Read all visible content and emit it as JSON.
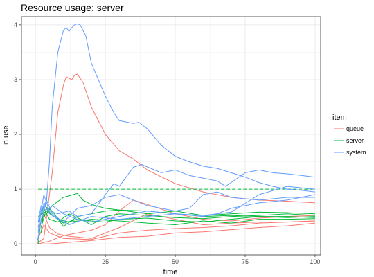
{
  "chart_data": {
    "type": "line",
    "title": "Resource usage: server",
    "xlabel": "time",
    "ylabel": "in use",
    "xlim": [
      -5,
      102
    ],
    "ylim": [
      -0.2,
      4.15
    ],
    "x_ticks": [
      0,
      25,
      50,
      75,
      100
    ],
    "y_ticks": [
      0,
      1,
      2,
      3,
      4
    ],
    "grid": true,
    "legend": {
      "title": "item",
      "position": "right",
      "entries": [
        {
          "name": "queue",
          "color": "#F8766D"
        },
        {
          "name": "server",
          "color": "#00BA38"
        },
        {
          "name": "system",
          "color": "#619CFF"
        }
      ]
    },
    "series": [
      {
        "name": "queue",
        "color": "#F8766D",
        "points": [
          [
            0.5,
            0
          ],
          [
            3,
            0.1
          ],
          [
            6,
            1.3
          ],
          [
            8,
            2.4
          ],
          [
            10,
            2.9
          ],
          [
            11,
            3.05
          ],
          [
            13,
            3
          ],
          [
            14,
            3.08
          ],
          [
            15,
            3.1
          ],
          [
            17,
            2.95
          ],
          [
            20,
            2.5
          ],
          [
            25,
            2.0
          ],
          [
            30,
            1.7
          ],
          [
            35,
            1.55
          ],
          [
            40,
            1.35
          ],
          [
            50,
            1.1
          ],
          [
            60,
            0.95
          ],
          [
            70,
            0.85
          ],
          [
            80,
            0.8
          ],
          [
            90,
            0.78
          ],
          [
            100,
            0.75
          ]
        ]
      },
      {
        "name": "queue",
        "color": "#F8766D",
        "points": [
          [
            1,
            0
          ],
          [
            5,
            0.05
          ],
          [
            10,
            0.15
          ],
          [
            20,
            0.25
          ],
          [
            25,
            0.35
          ],
          [
            30,
            0.6
          ],
          [
            35,
            0.8
          ],
          [
            40,
            0.72
          ],
          [
            50,
            0.55
          ],
          [
            60,
            0.45
          ],
          [
            70,
            0.42
          ],
          [
            80,
            0.47
          ],
          [
            90,
            0.5
          ],
          [
            100,
            0.52
          ]
        ]
      },
      {
        "name": "queue",
        "color": "#F8766D",
        "points": [
          [
            1,
            0.1
          ],
          [
            3,
            0.35
          ],
          [
            5,
            0.2
          ],
          [
            10,
            0.1
          ],
          [
            20,
            0.08
          ],
          [
            30,
            0.2
          ],
          [
            40,
            0.25
          ],
          [
            50,
            0.28
          ],
          [
            60,
            0.3
          ],
          [
            70,
            0.33
          ],
          [
            80,
            0.38
          ],
          [
            90,
            0.4
          ],
          [
            100,
            0.42
          ]
        ]
      },
      {
        "name": "queue",
        "color": "#F8766D",
        "points": [
          [
            2,
            0
          ],
          [
            5,
            0
          ],
          [
            10,
            0.02
          ],
          [
            20,
            0.06
          ],
          [
            30,
            0.12
          ],
          [
            40,
            0.14
          ],
          [
            50,
            0.2
          ],
          [
            60,
            0.22
          ],
          [
            70,
            0.26
          ],
          [
            80,
            0.3
          ],
          [
            90,
            0.33
          ],
          [
            100,
            0.38
          ]
        ]
      },
      {
        "name": "queue",
        "color": "#F8766D",
        "points": [
          [
            1,
            0.25
          ],
          [
            3,
            0.55
          ],
          [
            5,
            0.3
          ],
          [
            8,
            0.18
          ],
          [
            12,
            0.14
          ],
          [
            20,
            0.1
          ],
          [
            30,
            0.3
          ],
          [
            40,
            0.55
          ],
          [
            50,
            0.45
          ],
          [
            60,
            0.35
          ],
          [
            70,
            0.38
          ],
          [
            80,
            0.4
          ],
          [
            90,
            0.4
          ],
          [
            100,
            0.42
          ]
        ]
      },
      {
        "name": "server",
        "color": "#00BA38",
        "dashed": true,
        "points": [
          [
            1,
            1
          ],
          [
            100,
            1
          ]
        ]
      },
      {
        "name": "server",
        "color": "#00BA38",
        "points": [
          [
            1,
            0
          ],
          [
            2,
            0.45
          ],
          [
            4,
            0.55
          ],
          [
            6,
            0.7
          ],
          [
            10,
            0.85
          ],
          [
            15,
            0.92
          ],
          [
            17,
            0.8
          ],
          [
            20,
            0.72
          ],
          [
            25,
            0.65
          ],
          [
            30,
            0.62
          ],
          [
            40,
            0.6
          ],
          [
            50,
            0.55
          ],
          [
            60,
            0.5
          ],
          [
            70,
            0.52
          ],
          [
            80,
            0.5
          ],
          [
            90,
            0.48
          ],
          [
            100,
            0.5
          ]
        ]
      },
      {
        "name": "server",
        "color": "#00BA38",
        "points": [
          [
            2,
            0.2
          ],
          [
            3,
            0.65
          ],
          [
            5,
            0.45
          ],
          [
            8,
            0.4
          ],
          [
            12,
            0.55
          ],
          [
            15,
            0.48
          ],
          [
            20,
            0.35
          ],
          [
            25,
            0.5
          ],
          [
            30,
            0.55
          ],
          [
            40,
            0.52
          ],
          [
            50,
            0.48
          ],
          [
            60,
            0.46
          ],
          [
            70,
            0.5
          ],
          [
            80,
            0.52
          ],
          [
            90,
            0.55
          ],
          [
            100,
            0.52
          ]
        ]
      },
      {
        "name": "server",
        "color": "#00BA38",
        "points": [
          [
            2,
            0.3
          ],
          [
            4,
            0.65
          ],
          [
            6,
            0.52
          ],
          [
            10,
            0.38
          ],
          [
            15,
            0.45
          ],
          [
            20,
            0.42
          ],
          [
            25,
            0.4
          ],
          [
            30,
            0.45
          ],
          [
            40,
            0.47
          ],
          [
            50,
            0.42
          ],
          [
            60,
            0.4
          ],
          [
            70,
            0.45
          ],
          [
            80,
            0.5
          ],
          [
            90,
            0.5
          ],
          [
            100,
            0.48
          ]
        ]
      },
      {
        "name": "server",
        "color": "#00BA38",
        "points": [
          [
            1,
            0.4
          ],
          [
            3,
            0.7
          ],
          [
            6,
            0.6
          ],
          [
            10,
            0.32
          ],
          [
            15,
            0.5
          ],
          [
            20,
            0.55
          ],
          [
            25,
            0.6
          ],
          [
            30,
            0.62
          ],
          [
            40,
            0.55
          ],
          [
            50,
            0.6
          ],
          [
            60,
            0.52
          ],
          [
            70,
            0.55
          ],
          [
            80,
            0.58
          ],
          [
            90,
            0.57
          ],
          [
            100,
            0.55
          ]
        ]
      },
      {
        "name": "server",
        "color": "#00BA38",
        "points": [
          [
            1,
            0.5
          ],
          [
            4,
            0.6
          ],
          [
            8,
            0.45
          ],
          [
            12,
            0.4
          ],
          [
            20,
            0.45
          ],
          [
            30,
            0.42
          ],
          [
            40,
            0.38
          ],
          [
            50,
            0.35
          ],
          [
            60,
            0.42
          ],
          [
            70,
            0.38
          ],
          [
            80,
            0.45
          ],
          [
            90,
            0.45
          ],
          [
            100,
            0.46
          ]
        ]
      },
      {
        "name": "system",
        "color": "#619CFF",
        "points": [
          [
            0.5,
            0
          ],
          [
            2,
            0.4
          ],
          [
            4,
            0.8
          ],
          [
            5,
            1.5
          ],
          [
            6,
            2.5
          ],
          [
            8,
            3.5
          ],
          [
            10,
            3.9
          ],
          [
            11,
            3.95
          ],
          [
            12,
            3.88
          ],
          [
            13,
            3.95
          ],
          [
            14,
            4.0
          ],
          [
            15,
            4.02
          ],
          [
            16,
            4.0
          ],
          [
            18,
            3.8
          ],
          [
            20,
            3.3
          ],
          [
            25,
            2.7
          ],
          [
            28,
            2.4
          ],
          [
            30,
            2.25
          ],
          [
            35,
            2.2
          ],
          [
            37,
            2.22
          ],
          [
            40,
            2.1
          ],
          [
            45,
            1.8
          ],
          [
            50,
            1.6
          ],
          [
            55,
            1.5
          ],
          [
            60,
            1.42
          ],
          [
            65,
            1.38
          ],
          [
            70,
            1.3
          ],
          [
            75,
            1.22
          ],
          [
            80,
            1.12
          ],
          [
            85,
            1.05
          ],
          [
            90,
            1.0
          ],
          [
            95,
            0.98
          ],
          [
            100,
            0.95
          ]
        ]
      },
      {
        "name": "system",
        "color": "#619CFF",
        "points": [
          [
            1,
            0.3
          ],
          [
            3,
            0.9
          ],
          [
            5,
            0.6
          ],
          [
            8,
            0.55
          ],
          [
            12,
            0.6
          ],
          [
            15,
            0.5
          ],
          [
            20,
            0.55
          ],
          [
            25,
            0.9
          ],
          [
            28,
            1.1
          ],
          [
            30,
            1.05
          ],
          [
            35,
            1.4
          ],
          [
            38,
            1.45
          ],
          [
            45,
            1.3
          ],
          [
            50,
            1.35
          ],
          [
            55,
            1.25
          ],
          [
            60,
            1.2
          ],
          [
            65,
            1.15
          ],
          [
            68,
            1.05
          ],
          [
            75,
            1.3
          ],
          [
            80,
            1.35
          ],
          [
            85,
            1.3
          ],
          [
            90,
            1.28
          ],
          [
            95,
            1.25
          ],
          [
            100,
            1.22
          ]
        ]
      },
      {
        "name": "system",
        "color": "#619CFF",
        "points": [
          [
            1,
            0.2
          ],
          [
            2,
            0.6
          ],
          [
            4,
            0.8
          ],
          [
            6,
            0.55
          ],
          [
            10,
            0.4
          ],
          [
            15,
            0.65
          ],
          [
            20,
            0.7
          ],
          [
            25,
            0.85
          ],
          [
            30,
            0.9
          ],
          [
            40,
            0.7
          ],
          [
            50,
            0.6
          ],
          [
            55,
            0.65
          ],
          [
            60,
            0.9
          ],
          [
            65,
            0.95
          ],
          [
            70,
            0.85
          ],
          [
            80,
            0.8
          ],
          [
            90,
            0.85
          ],
          [
            100,
            0.85
          ]
        ]
      },
      {
        "name": "system",
        "color": "#619CFF",
        "points": [
          [
            1,
            0.1
          ],
          [
            3,
            0.75
          ],
          [
            5,
            0.55
          ],
          [
            8,
            0.45
          ],
          [
            12,
            0.35
          ],
          [
            20,
            0.5
          ],
          [
            30,
            0.45
          ],
          [
            40,
            0.5
          ],
          [
            50,
            0.55
          ],
          [
            60,
            0.5
          ],
          [
            65,
            0.55
          ],
          [
            70,
            0.65
          ],
          [
            80,
            0.75
          ],
          [
            90,
            0.8
          ],
          [
            100,
            0.9
          ]
        ]
      },
      {
        "name": "system",
        "color": "#619CFF",
        "points": [
          [
            1,
            0.4
          ],
          [
            2,
            0.7
          ],
          [
            4,
            0.6
          ],
          [
            6,
            0.7
          ],
          [
            10,
            0.55
          ],
          [
            15,
            0.45
          ],
          [
            20,
            0.4
          ],
          [
            30,
            0.5
          ],
          [
            40,
            0.6
          ],
          [
            50,
            0.55
          ],
          [
            60,
            0.52
          ],
          [
            70,
            0.58
          ],
          [
            80,
            0.9
          ],
          [
            90,
            1.05
          ],
          [
            100,
            1.0
          ]
        ]
      }
    ]
  }
}
